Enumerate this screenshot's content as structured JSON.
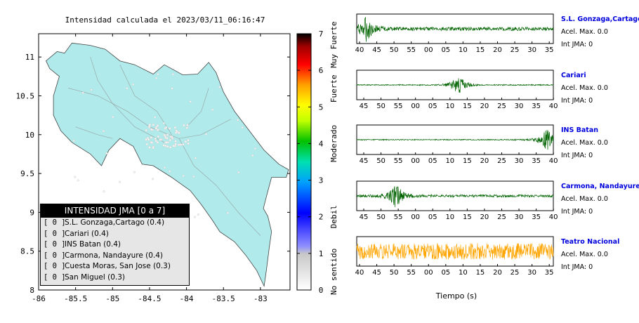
{
  "map": {
    "title": "Intensidad calculada el 2023/03/11_06:16:47",
    "lon_ticks": [
      "-86",
      "-85.5",
      "-85",
      "-84.5",
      "-84",
      "-83.5",
      "-83"
    ],
    "lat_ticks": [
      "11",
      "10.5",
      "10",
      "9.5",
      "9",
      "8.5",
      "8"
    ],
    "land_color": "#b0eaea",
    "lon_range": [
      -86,
      -82.6
    ],
    "lat_range": [
      8,
      11.3
    ]
  },
  "colorbar": {
    "ticks": [
      "0",
      "1",
      "2",
      "3",
      "4",
      "5",
      "6",
      "7"
    ],
    "labels": [
      {
        "text": "No sentido",
        "value": 0.5
      },
      {
        "text": "Debil",
        "value": 2
      },
      {
        "text": "Moderado",
        "value": 4
      },
      {
        "text": "Fuerte",
        "value": 5.5
      },
      {
        "text": "Muy Fuerte",
        "value": 6.7
      }
    ],
    "range": [
      0,
      7
    ]
  },
  "legend": {
    "header": "INTENSIDAD JMA [0 a 7]",
    "rows": [
      {
        "bracket": "[ 0 ]",
        "text": "S.L. Gonzaga,Cartago (0.4)"
      },
      {
        "bracket": "[ 0 ]",
        "text": "Cariari (0.4)"
      },
      {
        "bracket": "[ 0 ]",
        "text": "INS Batan (0.4)"
      },
      {
        "bracket": "[ 0 ]",
        "text": "Carmona, Nandayure (0.4)"
      },
      {
        "bracket": "[ 0 ]",
        "text": "Cuesta Moras, San Jose (0.3)"
      },
      {
        "bracket": "[ 0 ]",
        "text": "San Miguel (0.3)"
      }
    ]
  },
  "waveforms": {
    "xlabel": "Tiempo (s)",
    "panels": [
      {
        "name": "S.L. Gonzaga,Cartago",
        "acel": "Acel. Max. 0.0",
        "int": "Int JMA: 0",
        "color": "#006400",
        "ticks": [
          "40",
          "45",
          "50",
          "55",
          "00",
          "05",
          "10",
          "15",
          "20",
          "25",
          "30",
          "35"
        ],
        "tick_start_offset": 4,
        "burst_at": 0.05,
        "amp": 1.0
      },
      {
        "name": "Cariari",
        "acel": "Acel. Max. 0.0",
        "int": "Int JMA: 0",
        "color": "#006400",
        "ticks": [
          "45",
          "50",
          "55",
          "00",
          "05",
          "10",
          "15",
          "20",
          "25",
          "30",
          "35",
          "40"
        ],
        "tick_start_offset": 10,
        "burst_at": 0.52,
        "amp": 0.3
      },
      {
        "name": "INS Batan",
        "acel": "Acel. Max. 0.0",
        "int": "Int JMA: 0",
        "color": "#006400",
        "ticks": [
          "45",
          "50",
          "55",
          "00",
          "05",
          "10",
          "15",
          "20",
          "25",
          "30",
          "35",
          "40"
        ],
        "tick_start_offset": 10,
        "burst_at": 0.97,
        "amp": 0.3
      },
      {
        "name": "Carmona, Nandayure",
        "acel": "Acel. Max. 0.0",
        "int": "Int JMA: 0",
        "color": "#006400",
        "ticks": [
          "45",
          "50",
          "55",
          "00",
          "05",
          "10",
          "15",
          "20",
          "25",
          "30",
          "35",
          "40"
        ],
        "tick_start_offset": 10,
        "burst_at": 0.2,
        "amp": 0.7
      },
      {
        "name": "Teatro Nacional",
        "acel": "Acel. Max. 0.0",
        "int": "Int JMA: 0",
        "color": "#ffa500",
        "ticks": [
          "40",
          "45",
          "50",
          "55",
          "00",
          "05",
          "10",
          "15",
          "20",
          "25",
          "30",
          "35"
        ],
        "tick_start_offset": 4,
        "burst_at": -1,
        "amp": 1.0
      }
    ]
  },
  "chart_data": [
    {
      "type": "scatter",
      "title": "Intensidad calculada el 2023/03/11_06:16:47",
      "xlim": [
        -86,
        -82.6
      ],
      "ylim": [
        8,
        11.3
      ],
      "xticks": [
        -86,
        -85.5,
        -85,
        -84.5,
        -84,
        -83.5,
        -83
      ],
      "yticks": [
        8,
        8.5,
        9,
        9.5,
        10,
        10.5,
        11
      ],
      "grid": false
    },
    {
      "type": "heatmap",
      "colorbar_range": [
        0,
        7
      ],
      "labels": [
        "No sentido",
        "Debil",
        "Moderado",
        "Fuerte",
        "Muy Fuerte"
      ]
    },
    {
      "type": "line",
      "xlabel": "Tiempo (s)",
      "series": [
        {
          "name": "S.L. Gonzaga,Cartago"
        },
        {
          "name": "Cariari"
        },
        {
          "name": "INS Batan"
        },
        {
          "name": "Carmona, Nandayure"
        },
        {
          "name": "Teatro Nacional"
        }
      ]
    }
  ]
}
